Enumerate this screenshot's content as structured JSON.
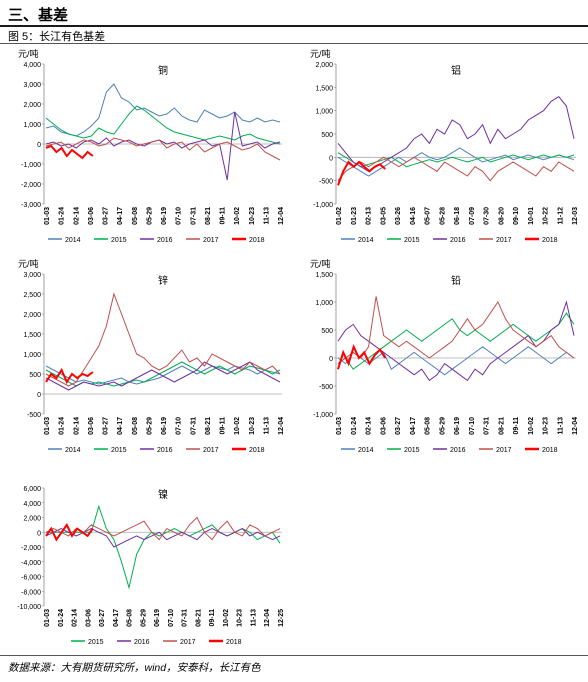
{
  "section_title": "三、基差",
  "figure_caption": "图 5：长江有色基差",
  "source": "数据来源：大有期货研究所，wind，安泰科，长江有色",
  "colors": {
    "2014": "#4f81bd",
    "2015": "#00b050",
    "2016": "#7030a0",
    "2017": "#c0504d",
    "2018": "#ff0000"
  },
  "chart_data": [
    {
      "type": "line",
      "title": "铜",
      "ylabel": "元/吨",
      "ylim": [
        -3000,
        4000
      ],
      "yticks": [
        "4,000",
        "3,000",
        "2,000",
        "1,000",
        "0",
        "-1,000",
        "-2,000",
        "-3,000"
      ],
      "xticks": [
        "01-03",
        "01-24",
        "02-14",
        "03-06",
        "03-27",
        "04-17",
        "05-08",
        "05-29",
        "06-19",
        "07-10",
        "07-31",
        "08-21",
        "09-11",
        "10-02",
        "10-23",
        "11-13",
        "12-04"
      ],
      "series": [
        {
          "name": "2014",
          "color": "#4f81bd",
          "values": [
            800,
            900,
            600,
            500,
            400,
            600,
            900,
            1300,
            2600,
            3000,
            2300,
            2100,
            1700,
            1800,
            1600,
            1400,
            1500,
            1800,
            1400,
            1200,
            1100,
            1700,
            1500,
            1300,
            1400,
            1600,
            1200,
            1100,
            1300,
            1100,
            1200,
            1100
          ]
        },
        {
          "name": "2015",
          "color": "#00b050",
          "values": [
            1300,
            1000,
            700,
            500,
            400,
            300,
            400,
            800,
            600,
            500,
            1000,
            1500,
            1900,
            1700,
            1400,
            1100,
            800,
            600,
            500,
            400,
            300,
            200,
            300,
            400,
            300,
            200,
            400,
            500,
            300,
            200,
            100,
            0
          ]
        },
        {
          "name": "2016",
          "color": "#7030a0",
          "values": [
            0,
            100,
            -100,
            0,
            -200,
            100,
            200,
            0,
            300,
            -100,
            100,
            200,
            0,
            -100,
            100,
            200,
            0,
            100,
            -200,
            0,
            100,
            200,
            -100,
            0,
            -1800,
            1600,
            -100,
            0,
            100,
            -200,
            0,
            100
          ]
        },
        {
          "name": "2017",
          "color": "#c0504d",
          "values": [
            -100,
            0,
            100,
            -200,
            0,
            200,
            100,
            -100,
            0,
            300,
            200,
            100,
            -100,
            0,
            100,
            200,
            -200,
            0,
            100,
            -300,
            0,
            -400,
            -200,
            0,
            100,
            -100,
            -300,
            -200,
            0,
            -400,
            -600,
            -800
          ]
        },
        {
          "name": "2018",
          "color": "#ff0000",
          "values": [
            -200,
            -100,
            -400,
            -200,
            -600,
            -300,
            -500,
            -700,
            -400,
            -600
          ]
        }
      ]
    },
    {
      "type": "line",
      "title": "铝",
      "ylabel": "元/吨",
      "ylim": [
        -1000,
        2000
      ],
      "yticks": [
        "2,000",
        "1,500",
        "1,000",
        "500",
        "0",
        "-500",
        "-1,000"
      ],
      "xticks": [
        "01-02",
        "01-23",
        "02-13",
        "03-05",
        "03-26",
        "04-16",
        "05-07",
        "05-28",
        "06-18",
        "07-09",
        "07-30",
        "08-20",
        "09-10",
        "10-01",
        "10-22",
        "11-12",
        "12-03"
      ],
      "series": [
        {
          "name": "2014",
          "color": "#4f81bd",
          "values": [
            0,
            -100,
            -200,
            -300,
            -400,
            -300,
            -200,
            -100,
            0,
            -100,
            0,
            100,
            0,
            -50,
            0,
            100,
            200,
            100,
            0,
            -100,
            -50,
            0,
            50,
            -50,
            0,
            50,
            0,
            -50,
            0,
            50,
            0,
            -50
          ]
        },
        {
          "name": "2015",
          "color": "#00b050",
          "values": [
            100,
            0,
            -100,
            -200,
            -150,
            -100,
            -50,
            0,
            -100,
            -200,
            -150,
            -100,
            -50,
            -100,
            -50,
            0,
            -50,
            -100,
            -50,
            0,
            -100,
            -50,
            0,
            50,
            0,
            -50,
            0,
            50,
            0,
            50,
            0,
            50
          ]
        },
        {
          "name": "2016",
          "color": "#7030a0",
          "values": [
            300,
            100,
            -100,
            -200,
            -300,
            -200,
            -100,
            0,
            100,
            200,
            400,
            500,
            300,
            600,
            500,
            800,
            700,
            400,
            500,
            700,
            300,
            600,
            400,
            500,
            600,
            800,
            900,
            1000,
            1200,
            1300,
            1100,
            400
          ]
        },
        {
          "name": "2017",
          "color": "#c0504d",
          "values": [
            -500,
            -300,
            -200,
            -100,
            -200,
            -100,
            0,
            -100,
            -200,
            -100,
            0,
            -100,
            -200,
            -300,
            -100,
            -200,
            -300,
            -400,
            -200,
            -300,
            -500,
            -300,
            -200,
            -100,
            -200,
            -300,
            -400,
            -200,
            -300,
            -100,
            -200,
            -300
          ]
        },
        {
          "name": "2018",
          "color": "#ff0000",
          "values": [
            -600,
            -300,
            -100,
            -200,
            -100,
            -200,
            -300,
            -200,
            -150,
            -250
          ]
        }
      ]
    },
    {
      "type": "line",
      "title": "锌",
      "ylabel": "元/吨",
      "ylim": [
        -500,
        3000
      ],
      "yticks": [
        "3,000",
        "2,500",
        "2,000",
        "1,500",
        "1,000",
        "500",
        "0",
        "-500"
      ],
      "xticks": [
        "01-03",
        "01-24",
        "02-14",
        "03-06",
        "03-27",
        "04-17",
        "05-08",
        "05-29",
        "06-19",
        "07-10",
        "07-31",
        "08-21",
        "09-11",
        "10-02",
        "10-23",
        "11-13",
        "12-04"
      ],
      "series": [
        {
          "name": "2014",
          "color": "#4f81bd",
          "values": [
            700,
            600,
            500,
            400,
            300,
            350,
            300,
            250,
            300,
            350,
            400,
            300,
            250,
            300,
            350,
            400,
            500,
            600,
            700,
            600,
            500,
            600,
            700,
            650,
            600,
            700,
            650,
            600,
            500,
            600,
            550,
            500
          ]
        },
        {
          "name": "2015",
          "color": "#00b050",
          "values": [
            600,
            500,
            400,
            300,
            200,
            300,
            250,
            300,
            250,
            200,
            250,
            300,
            350,
            300,
            400,
            500,
            600,
            700,
            800,
            700,
            600,
            500,
            600,
            700,
            600,
            500,
            600,
            700,
            650,
            600,
            500,
            600
          ]
        },
        {
          "name": "2016",
          "color": "#7030a0",
          "values": [
            400,
            300,
            200,
            100,
            200,
            300,
            250,
            200,
            250,
            300,
            200,
            300,
            400,
            500,
            600,
            500,
            400,
            300,
            400,
            500,
            600,
            800,
            700,
            600,
            500,
            600,
            700,
            800,
            600,
            500,
            400,
            300
          ]
        },
        {
          "name": "2017",
          "color": "#c0504d",
          "values": [
            500,
            400,
            300,
            200,
            300,
            600,
            900,
            1200,
            1700,
            2500,
            2000,
            1500,
            1000,
            900,
            700,
            600,
            700,
            900,
            1100,
            800,
            900,
            700,
            1000,
            900,
            800,
            700,
            600,
            800,
            700,
            600,
            700,
            500
          ]
        },
        {
          "name": "2018",
          "color": "#ff0000",
          "values": [
            300,
            500,
            400,
            600,
            300,
            500,
            400,
            500,
            450,
            550
          ]
        }
      ]
    },
    {
      "type": "line",
      "title": "铅",
      "ylabel": "元/吨",
      "ylim": [
        -1000,
        1500
      ],
      "yticks": [
        "1,500",
        "1,000",
        "500",
        "0",
        "-500",
        "-1,000"
      ],
      "xticks": [
        "01-03",
        "01-24",
        "02-14",
        "03-06",
        "03-27",
        "04-17",
        "05-08",
        "05-29",
        "06-19",
        "07-10",
        "07-31",
        "08-21",
        "09-11",
        "10-02",
        "10-23",
        "11-13",
        "12-04"
      ],
      "series": [
        {
          "name": "2014",
          "color": "#4f81bd",
          "values": [
            0,
            -100,
            100,
            0,
            -100,
            0,
            100,
            -200,
            -100,
            0,
            100,
            0,
            -100,
            -200,
            -300,
            -200,
            -100,
            0,
            100,
            200,
            100,
            0,
            -100,
            0,
            100,
            200,
            100,
            0,
            -100,
            0,
            100,
            0
          ]
        },
        {
          "name": "2015",
          "color": "#00b050",
          "values": [
            -100,
            0,
            -200,
            -100,
            0,
            100,
            200,
            300,
            400,
            500,
            400,
            300,
            400,
            500,
            600,
            700,
            500,
            400,
            500,
            400,
            300,
            400,
            500,
            600,
            500,
            400,
            300,
            400,
            500,
            600,
            800,
            600
          ]
        },
        {
          "name": "2016",
          "color": "#7030a0",
          "values": [
            300,
            500,
            600,
            400,
            300,
            200,
            100,
            0,
            -100,
            -200,
            -300,
            -200,
            -400,
            -300,
            -100,
            -200,
            -300,
            -400,
            -200,
            -300,
            -100,
            0,
            100,
            200,
            300,
            400,
            200,
            300,
            500,
            600,
            1000,
            400
          ]
        },
        {
          "name": "2017",
          "color": "#c0504d",
          "values": [
            -100,
            0,
            100,
            0,
            200,
            1100,
            400,
            300,
            200,
            300,
            200,
            100,
            0,
            100,
            200,
            300,
            500,
            700,
            500,
            600,
            800,
            1000,
            700,
            500,
            400,
            300,
            200,
            300,
            400,
            200,
            100,
            0
          ]
        },
        {
          "name": "2018",
          "color": "#ff0000",
          "values": [
            -200,
            100,
            -100,
            200,
            0,
            100,
            -100,
            50,
            150,
            0
          ]
        }
      ]
    },
    {
      "type": "line",
      "title": "镍",
      "ylabel": "",
      "ylim": [
        -10000,
        6000
      ],
      "yticks": [
        "6,000",
        "4,000",
        "2,000",
        "0",
        "-2,000",
        "-4,000",
        "-6,000",
        "-8,000",
        "-10,000"
      ],
      "xticks": [
        "01-03",
        "01-24",
        "02-14",
        "03-06",
        "03-27",
        "04-17",
        "05-08",
        "05-29",
        "06-19",
        "07-10",
        "07-31",
        "08-21",
        "09-11",
        "10-02",
        "10-23",
        "11-13",
        "12-04",
        "12-25"
      ],
      "series": [
        {
          "name": "2015",
          "color": "#00b050",
          "values": [
            0,
            0,
            0,
            0,
            0,
            0,
            0,
            3500,
            500,
            -1000,
            -4000,
            -7500,
            -3000,
            -1000,
            0,
            -500,
            0,
            500,
            0,
            -500,
            0,
            500,
            1000,
            0,
            -500,
            0,
            500,
            0,
            -1000,
            -500,
            0,
            -1500
          ]
        },
        {
          "name": "2016",
          "color": "#7030a0",
          "values": [
            -500,
            0,
            500,
            0,
            -500,
            0,
            500,
            0,
            -500,
            -2000,
            -1500,
            -1000,
            -500,
            -1000,
            -500,
            0,
            -1000,
            -500,
            0,
            -500,
            -1000,
            0,
            500,
            0,
            -500,
            0,
            500,
            -500,
            0,
            -500,
            -1000,
            -500
          ]
        },
        {
          "name": "2017",
          "color": "#c0504d",
          "values": [
            0,
            500,
            0,
            -500,
            500,
            0,
            1000,
            500,
            0,
            -500,
            0,
            500,
            1000,
            1500,
            0,
            -1000,
            500,
            0,
            -500,
            1000,
            2000,
            0,
            -1000,
            500,
            1500,
            0,
            -500,
            1000,
            500,
            -500,
            0,
            500
          ]
        },
        {
          "name": "2018",
          "color": "#ff0000",
          "values": [
            -500,
            500,
            -1000,
            0,
            1000,
            -500,
            500,
            0,
            -500,
            500
          ]
        }
      ]
    }
  ]
}
